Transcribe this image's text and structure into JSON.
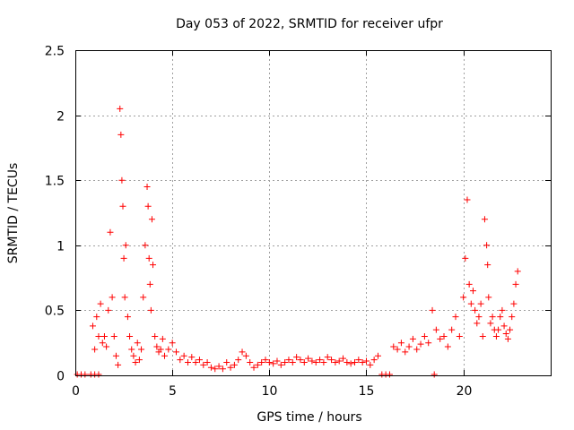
{
  "chart_data": {
    "type": "scatter",
    "title": "Day 053 of 2022, SRMTID for receiver ufpr",
    "xlabel": "GPS time / hours",
    "ylabel": "SRMTID / TECUs",
    "xlim": [
      0,
      24.5
    ],
    "ylim": [
      0,
      2.5
    ],
    "grid": true,
    "xticks": [
      0,
      5,
      10,
      15,
      20
    ],
    "xtick_labels": [
      "0",
      "5",
      "10",
      "15",
      "20"
    ],
    "yticks": [
      0,
      0.5,
      1,
      1.5,
      2,
      2.5
    ],
    "ytick_labels": [
      "0",
      "0.5",
      "1",
      "1.5",
      "2",
      "2.5"
    ],
    "marker": "plus",
    "series": [
      {
        "name": "SRMTID",
        "color": "#ff0000",
        "x": [
          0.1,
          0.3,
          0.5,
          0.8,
          1.0,
          1.2,
          0.9,
          1.0,
          1.1,
          1.2,
          1.3,
          1.4,
          1.5,
          1.6,
          1.7,
          1.8,
          1.9,
          2.0,
          2.1,
          2.2,
          2.3,
          2.35,
          2.4,
          2.45,
          2.5,
          2.55,
          2.6,
          2.7,
          2.8,
          2.9,
          3.0,
          3.1,
          3.2,
          3.3,
          3.4,
          3.5,
          3.6,
          3.7,
          3.75,
          3.8,
          3.85,
          3.9,
          3.95,
          4.0,
          4.1,
          4.2,
          4.3,
          4.4,
          4.5,
          4.6,
          4.8,
          5.0,
          5.2,
          5.4,
          5.6,
          5.8,
          6.0,
          6.2,
          6.4,
          6.6,
          6.8,
          7.0,
          7.2,
          7.4,
          7.6,
          7.8,
          8.0,
          8.2,
          8.4,
          8.6,
          8.8,
          9.0,
          9.2,
          9.4,
          9.6,
          9.8,
          10.0,
          10.2,
          10.4,
          10.6,
          10.8,
          11.0,
          11.2,
          11.4,
          11.6,
          11.8,
          12.0,
          12.2,
          12.4,
          12.6,
          12.8,
          13.0,
          13.2,
          13.4,
          13.6,
          13.8,
          14.0,
          14.2,
          14.4,
          14.6,
          14.8,
          15.0,
          15.2,
          15.4,
          15.6,
          15.8,
          16.0,
          16.2,
          16.4,
          16.6,
          16.8,
          17.0,
          17.2,
          17.4,
          17.6,
          17.8,
          18.0,
          18.2,
          18.4,
          18.5,
          18.6,
          18.8,
          19.0,
          19.2,
          19.4,
          19.6,
          19.8,
          20.0,
          20.1,
          20.2,
          20.3,
          20.4,
          20.5,
          20.6,
          20.7,
          20.8,
          20.9,
          21.0,
          21.1,
          21.2,
          21.25,
          21.3,
          21.4,
          21.5,
          21.6,
          21.7,
          21.8,
          21.9,
          22.0,
          22.1,
          22.2,
          22.3,
          22.4,
          22.5,
          22.6,
          22.7,
          22.8
        ],
        "y": [
          0.0,
          0.0,
          0.0,
          0.0,
          0.0,
          0.0,
          0.38,
          0.2,
          0.45,
          0.3,
          0.55,
          0.25,
          0.3,
          0.22,
          0.5,
          1.1,
          0.6,
          0.3,
          0.15,
          0.08,
          2.05,
          1.85,
          1.5,
          1.3,
          0.9,
          0.6,
          1.0,
          0.45,
          0.3,
          0.2,
          0.15,
          0.1,
          0.25,
          0.12,
          0.2,
          0.6,
          1.0,
          1.45,
          1.3,
          0.9,
          0.7,
          0.5,
          1.2,
          0.85,
          0.3,
          0.22,
          0.18,
          0.2,
          0.28,
          0.15,
          0.2,
          0.25,
          0.18,
          0.12,
          0.15,
          0.1,
          0.14,
          0.1,
          0.12,
          0.08,
          0.1,
          0.06,
          0.05,
          0.07,
          0.05,
          0.1,
          0.06,
          0.08,
          0.12,
          0.18,
          0.15,
          0.1,
          0.06,
          0.08,
          0.1,
          0.12,
          0.1,
          0.09,
          0.11,
          0.08,
          0.1,
          0.12,
          0.1,
          0.14,
          0.12,
          0.1,
          0.13,
          0.11,
          0.1,
          0.12,
          0.1,
          0.14,
          0.12,
          0.1,
          0.11,
          0.13,
          0.1,
          0.09,
          0.1,
          0.12,
          0.1,
          0.11,
          0.08,
          0.12,
          0.15,
          0.0,
          0.0,
          0.0,
          0.22,
          0.2,
          0.25,
          0.18,
          0.22,
          0.28,
          0.2,
          0.24,
          0.3,
          0.25,
          0.5,
          0.0,
          0.35,
          0.28,
          0.3,
          0.22,
          0.35,
          0.45,
          0.3,
          0.6,
          0.9,
          1.35,
          0.7,
          0.55,
          0.65,
          0.5,
          0.4,
          0.45,
          0.55,
          0.3,
          1.2,
          1.0,
          0.85,
          0.6,
          0.4,
          0.45,
          0.35,
          0.3,
          0.35,
          0.45,
          0.5,
          0.38,
          0.32,
          0.28,
          0.35,
          0.45,
          0.55,
          0.7,
          0.8
        ]
      }
    ]
  }
}
